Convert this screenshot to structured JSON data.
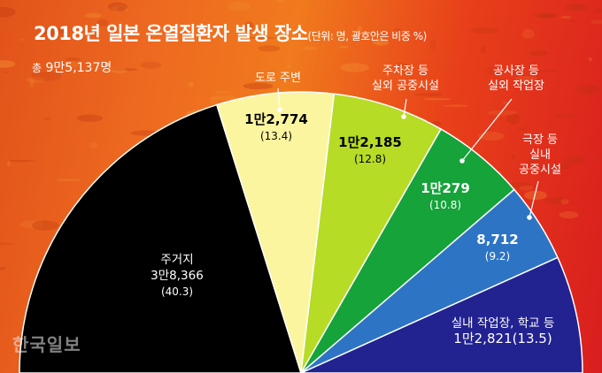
{
  "title": "2018년 일본 온열질환자 발생 장소",
  "title_unit": "(단위: 명, 괄호안은 비중 %)",
  "total_prefix": "총",
  "total_value": "9만5,137명",
  "watermark": "한국일보",
  "colors": {
    "background": "#ea5a1c",
    "slice_home": "#000000",
    "slice_road": "#fbf5a0",
    "slice_outdoor_public": "#b6dc25",
    "slice_outdoor_work": "#15a33a",
    "slice_indoor_public": "#2e74c4",
    "slice_indoor_work": "#222291",
    "text_light": "#ffffff",
    "text_dark": "#000000"
  },
  "chart_data": {
    "type": "pie",
    "shape": "half-pie",
    "title": "2018년 일본 온열질환자 발생 장소",
    "unit": "(단위: 명, 괄호안은 비중 %)",
    "total": 95137,
    "slices": [
      {
        "label": "주거지",
        "value": 38366,
        "value_text": "3만8,366",
        "percent": 40.3,
        "percent_text": "(40.3)",
        "color": "#000000"
      },
      {
        "label": "도로 주변",
        "value": 12774,
        "value_text": "1만2,774",
        "percent": 13.4,
        "percent_text": "(13.4)",
        "color": "#fbf5a0"
      },
      {
        "label": "주차장 등 실외 공중시설",
        "value": 12185,
        "value_text": "1만2,185",
        "percent": 12.8,
        "percent_text": "(12.8)",
        "color": "#b6dc25"
      },
      {
        "label": "공사장 등 실외 작업장",
        "value": 10279,
        "value_text": "1만279",
        "percent": 10.8,
        "percent_text": "(10.8)",
        "color": "#15a33a"
      },
      {
        "label": "극장 등 실내 공중시설",
        "value": 8712,
        "value_text": "8,712",
        "percent": 9.2,
        "percent_text": "(9.2)",
        "color": "#2e74c4"
      },
      {
        "label": "실내 작업장, 학교 등",
        "value": 12821,
        "value_text": "1만2,821",
        "percent": 13.5,
        "percent_text": "(13.5)",
        "color": "#222291"
      }
    ],
    "callouts": [
      {
        "lines": [
          "도로 주변"
        ]
      },
      {
        "lines": [
          "주차장 등",
          "실외 공중시설"
        ]
      },
      {
        "lines": [
          "공사장 등",
          "실외 작업장"
        ]
      },
      {
        "lines": [
          "극장 등",
          "실내",
          "공중시설"
        ]
      }
    ]
  }
}
